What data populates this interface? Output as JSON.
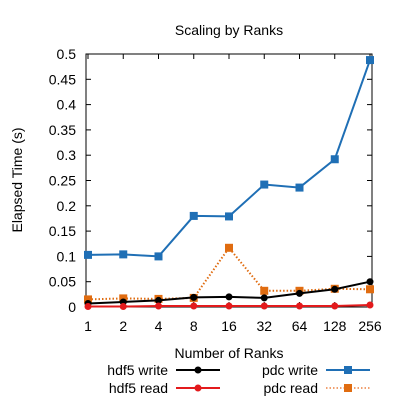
{
  "chart_data": {
    "type": "line",
    "title": "Scaling by Ranks",
    "xlabel": "Number of Ranks",
    "ylabel": "Elapsed Time (s)",
    "categories": [
      "1",
      "2",
      "4",
      "8",
      "16",
      "32",
      "64",
      "128",
      "256"
    ],
    "x_scale": "log2",
    "ylim": [
      0,
      0.5
    ],
    "yticks": [
      "0",
      "0.05",
      "0.1",
      "0.15",
      "0.2",
      "0.25",
      "0.3",
      "0.35",
      "0.4",
      "0.45",
      "0.5"
    ],
    "grid": false,
    "legend_placement": "bottom",
    "series": [
      {
        "name": "hdf5 write",
        "color": "#000000",
        "marker": "circle",
        "line_style": "solid",
        "values": [
          0.007,
          0.01,
          0.013,
          0.019,
          0.02,
          0.018,
          0.027,
          0.035,
          0.05
        ]
      },
      {
        "name": "hdf5 read",
        "color": "#e31a1c",
        "marker": "circle",
        "line_style": "solid",
        "values": [
          0.001,
          0.001,
          0.002,
          0.002,
          0.002,
          0.002,
          0.002,
          0.002,
          0.004
        ]
      },
      {
        "name": "pdc write",
        "color": "#1f6fb5",
        "marker": "square",
        "line_style": "solid",
        "values": [
          0.103,
          0.104,
          0.1,
          0.18,
          0.179,
          0.242,
          0.236,
          0.292,
          0.488
        ]
      },
      {
        "name": "pdc read",
        "color": "#e06c10",
        "marker": "square",
        "line_style": "dotted",
        "values": [
          0.015,
          0.017,
          0.016,
          0.018,
          0.117,
          0.032,
          0.032,
          0.036,
          0.035
        ]
      }
    ]
  }
}
